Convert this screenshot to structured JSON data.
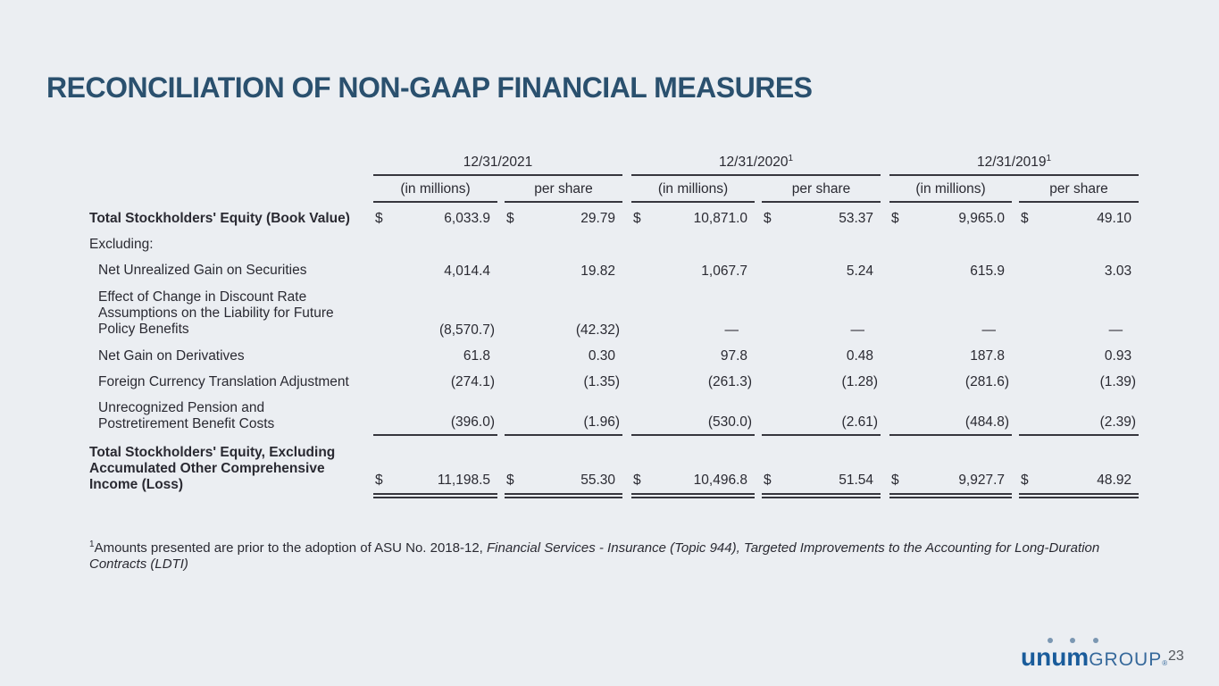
{
  "slide": {
    "title": "RECONCILIATION OF NON-GAAP FINANCIAL MEASURES",
    "page_number": "23"
  },
  "logo": {
    "brand": "unum",
    "suffix": "GROUP",
    "trademark": "®"
  },
  "table": {
    "dollar_sign": "$",
    "col_groups": [
      {
        "date": "12/31/2021",
        "sup": ""
      },
      {
        "date": "12/31/2020",
        "sup": "1"
      },
      {
        "date": "12/31/2019",
        "sup": "1"
      }
    ],
    "sub_headers": [
      "(in millions)",
      "per share"
    ],
    "rows": [
      {
        "label": "Total Stockholders' Equity (Book Value)",
        "bold": true,
        "dollar": true,
        "values": [
          "6,033.9",
          "29.79",
          "10,871.0",
          "53.37",
          "9,965.0",
          "49.10"
        ]
      },
      {
        "label": "Excluding:"
      },
      {
        "label": "Net Unrealized Gain on Securities",
        "indent": true,
        "values": [
          "4,014.4",
          "19.82",
          "1,067.7",
          "5.24",
          "615.9",
          "3.03"
        ]
      },
      {
        "label": "Effect of Change in Discount Rate Assumptions on the Liability for Future Policy Benefits",
        "indent": true,
        "values": [
          "(8,570.7)",
          "(42.32)",
          "—",
          "—",
          "—",
          "—"
        ]
      },
      {
        "label": "Net Gain on Derivatives",
        "indent": true,
        "values": [
          "61.8",
          "0.30",
          "97.8",
          "0.48",
          "187.8",
          "0.93"
        ]
      },
      {
        "label": "Foreign Currency Translation Adjustment",
        "indent": true,
        "values": [
          "(274.1)",
          "(1.35)",
          "(261.3)",
          "(1.28)",
          "(281.6)",
          "(1.39)"
        ]
      },
      {
        "label": "Unrecognized Pension and Postretirement Benefit Costs",
        "indent": true,
        "underline": "single",
        "values": [
          "(396.0)",
          "(1.96)",
          "(530.0)",
          "(2.61)",
          "(484.8)",
          "(2.39)"
        ]
      },
      {
        "label": "Total Stockholders' Equity, Excluding Accumulated Other Comprehensive Income (Loss)",
        "bold": true,
        "dollar": true,
        "underline": "double",
        "values": [
          "11,198.5",
          "55.30",
          "10,496.8",
          "51.54",
          "9,927.7",
          "48.92"
        ]
      }
    ]
  },
  "footnote": {
    "marker": "1",
    "text_regular": "Amounts presented are prior to the adoption of ASU No. 2018-12, ",
    "text_italic": "Financial Services - Insurance (Topic 944), Targeted Improvements to the Accounting for Long-Duration Contracts (LDTI)"
  }
}
